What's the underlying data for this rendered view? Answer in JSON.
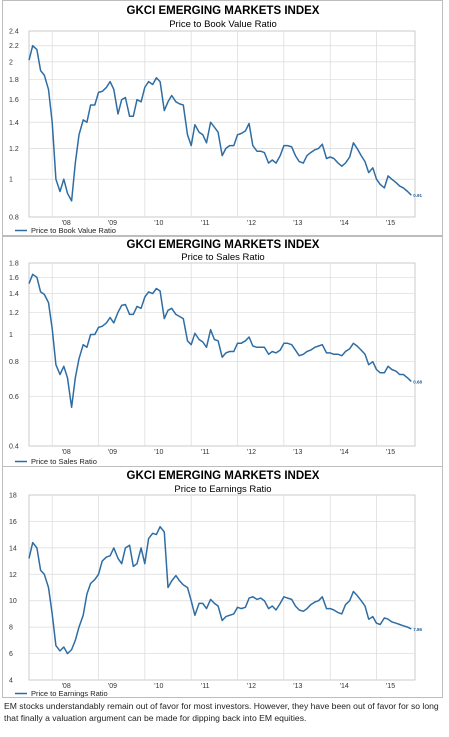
{
  "caption": "EM stocks understandably remain out of favor for most investors. However, they have been out of favor for so long that finally a valuation argument can be made for dipping back into EM equities.",
  "colors": {
    "line": "#2e6da4",
    "grid": "#d9d9d9",
    "border": "#bdbdbd"
  },
  "chart_data": [
    {
      "type": "line",
      "title": "GKCI EMERGING MARKETS INDEX",
      "subtitle": "Price to Book Value Ratio",
      "legend": "Price to Book Value Ratio",
      "legend_position": "bottom-left",
      "y_scale": "log",
      "ylim": [
        0.8,
        2.4
      ],
      "y_ticks": [
        0.8,
        1,
        1.2,
        1.4,
        1.6,
        1.8,
        2,
        2.2,
        2.4
      ],
      "y_tick_labels": [
        "0.8",
        "1",
        "1.2",
        "1.4",
        "1.6",
        "1.8",
        "2",
        "2.2",
        "2.4"
      ],
      "xlim": [
        2007.5,
        2015.83
      ],
      "x_ticks": [
        2008,
        2009,
        2010,
        2011,
        2012,
        2013,
        2014,
        2015
      ],
      "x_tick_labels": [
        "'08",
        "'09",
        "'10",
        "'11",
        "'12",
        "'13",
        "'14",
        "'15"
      ],
      "grid": true,
      "end_label": "0.91",
      "series": [
        {
          "x": [
            2007.5,
            2007.58,
            2007.67,
            2007.75,
            2007.83,
            2007.92,
            2008.0,
            2008.08,
            2008.17,
            2008.25,
            2008.33,
            2008.42,
            2008.5,
            2008.58,
            2008.67,
            2008.75,
            2008.83,
            2008.92,
            2009.0,
            2009.08,
            2009.17,
            2009.25,
            2009.33,
            2009.42,
            2009.5,
            2009.58,
            2009.67,
            2009.75,
            2009.83,
            2009.92,
            2010.0,
            2010.08,
            2010.17,
            2010.25,
            2010.33,
            2010.42,
            2010.5,
            2010.58,
            2010.67,
            2010.75,
            2010.83,
            2010.92,
            2011.0,
            2011.08,
            2011.17,
            2011.25,
            2011.33,
            2011.42,
            2011.5,
            2011.58,
            2011.67,
            2011.75,
            2011.83,
            2011.92,
            2012.0,
            2012.08,
            2012.17,
            2012.25,
            2012.33,
            2012.42,
            2012.5,
            2012.58,
            2012.67,
            2012.75,
            2012.83,
            2012.92,
            2013.0,
            2013.08,
            2013.17,
            2013.25,
            2013.33,
            2013.42,
            2013.5,
            2013.58,
            2013.67,
            2013.75,
            2013.83,
            2013.92,
            2014.0,
            2014.08,
            2014.17,
            2014.25,
            2014.33,
            2014.42,
            2014.5,
            2014.58,
            2014.67,
            2014.75,
            2014.83,
            2014.92,
            2015.0,
            2015.08,
            2015.17,
            2015.25,
            2015.33,
            2015.42,
            2015.5,
            2015.58,
            2015.67,
            2015.75
          ],
          "values": [
            2.02,
            2.2,
            2.15,
            1.9,
            1.85,
            1.7,
            1.4,
            1.0,
            0.93,
            1.0,
            0.92,
            0.88,
            1.1,
            1.3,
            1.42,
            1.4,
            1.55,
            1.55,
            1.67,
            1.68,
            1.72,
            1.78,
            1.7,
            1.47,
            1.6,
            1.62,
            1.45,
            1.45,
            1.6,
            1.58,
            1.72,
            1.78,
            1.75,
            1.82,
            1.78,
            1.5,
            1.58,
            1.64,
            1.58,
            1.56,
            1.55,
            1.3,
            1.22,
            1.38,
            1.32,
            1.3,
            1.24,
            1.4,
            1.36,
            1.32,
            1.15,
            1.2,
            1.22,
            1.22,
            1.3,
            1.31,
            1.33,
            1.39,
            1.22,
            1.18,
            1.18,
            1.17,
            1.1,
            1.12,
            1.1,
            1.15,
            1.22,
            1.22,
            1.21,
            1.15,
            1.11,
            1.1,
            1.15,
            1.17,
            1.19,
            1.2,
            1.23,
            1.13,
            1.14,
            1.13,
            1.1,
            1.08,
            1.1,
            1.14,
            1.24,
            1.2,
            1.15,
            1.11,
            1.04,
            1.07,
            1.0,
            0.97,
            0.95,
            1.02,
            1.0,
            0.98,
            0.96,
            0.95,
            0.93,
            0.91
          ]
        }
      ]
    },
    {
      "type": "line",
      "title": "GKCI EMERGING MARKETS INDEX",
      "subtitle": "Price to Sales Ratio",
      "legend": "Price to Sales Ratio",
      "legend_position": "bottom-left",
      "y_scale": "log",
      "ylim": [
        0.4,
        1.8
      ],
      "y_ticks": [
        0.4,
        0.6,
        0.8,
        1,
        1.2,
        1.4,
        1.6,
        1.8
      ],
      "y_tick_labels": [
        "0.4",
        "0.6",
        "0.8",
        "1",
        "1.2",
        "1.4",
        "1.6",
        "1.8"
      ],
      "xlim": [
        2007.5,
        2015.83
      ],
      "x_ticks": [
        2008,
        2009,
        2010,
        2011,
        2012,
        2013,
        2014,
        2015
      ],
      "x_tick_labels": [
        "'08",
        "'09",
        "'10",
        "'11",
        "'12",
        "'13",
        "'14",
        "'15"
      ],
      "grid": true,
      "end_label": "0.68",
      "series": [
        {
          "x": [
            2007.5,
            2007.58,
            2007.67,
            2007.75,
            2007.83,
            2007.92,
            2008.0,
            2008.08,
            2008.17,
            2008.25,
            2008.33,
            2008.42,
            2008.5,
            2008.58,
            2008.67,
            2008.75,
            2008.83,
            2008.92,
            2009.0,
            2009.08,
            2009.17,
            2009.25,
            2009.33,
            2009.42,
            2009.5,
            2009.58,
            2009.67,
            2009.75,
            2009.83,
            2009.92,
            2010.0,
            2010.08,
            2010.17,
            2010.25,
            2010.33,
            2010.42,
            2010.5,
            2010.58,
            2010.67,
            2010.75,
            2010.83,
            2010.92,
            2011.0,
            2011.08,
            2011.17,
            2011.25,
            2011.33,
            2011.42,
            2011.5,
            2011.58,
            2011.67,
            2011.75,
            2011.83,
            2011.92,
            2012.0,
            2012.08,
            2012.17,
            2012.25,
            2012.33,
            2012.42,
            2012.5,
            2012.58,
            2012.67,
            2012.75,
            2012.83,
            2012.92,
            2013.0,
            2013.08,
            2013.17,
            2013.25,
            2013.33,
            2013.42,
            2013.5,
            2013.58,
            2013.67,
            2013.75,
            2013.83,
            2013.92,
            2014.0,
            2014.08,
            2014.17,
            2014.25,
            2014.33,
            2014.42,
            2014.5,
            2014.58,
            2014.67,
            2014.75,
            2014.83,
            2014.92,
            2015.0,
            2015.08,
            2015.17,
            2015.25,
            2015.33,
            2015.42,
            2015.5,
            2015.58,
            2015.67,
            2015.75
          ],
          "values": [
            1.52,
            1.64,
            1.6,
            1.42,
            1.39,
            1.3,
            1.05,
            0.78,
            0.72,
            0.77,
            0.7,
            0.55,
            0.7,
            0.82,
            0.92,
            0.9,
            1.0,
            1.0,
            1.06,
            1.07,
            1.1,
            1.15,
            1.1,
            1.2,
            1.27,
            1.28,
            1.18,
            1.18,
            1.26,
            1.24,
            1.36,
            1.42,
            1.4,
            1.46,
            1.43,
            1.14,
            1.22,
            1.24,
            1.18,
            1.16,
            1.14,
            0.95,
            0.92,
            1.01,
            0.96,
            0.94,
            0.9,
            1.04,
            0.96,
            0.95,
            0.83,
            0.86,
            0.87,
            0.87,
            0.93,
            0.93,
            0.95,
            0.98,
            0.91,
            0.9,
            0.9,
            0.9,
            0.85,
            0.87,
            0.86,
            0.88,
            0.93,
            0.93,
            0.92,
            0.88,
            0.84,
            0.85,
            0.87,
            0.88,
            0.9,
            0.91,
            0.92,
            0.86,
            0.86,
            0.85,
            0.85,
            0.84,
            0.87,
            0.89,
            0.93,
            0.91,
            0.88,
            0.85,
            0.78,
            0.8,
            0.75,
            0.73,
            0.73,
            0.77,
            0.75,
            0.74,
            0.72,
            0.72,
            0.7,
            0.68
          ]
        }
      ]
    },
    {
      "type": "line",
      "title": "GKCI EMERGING MARKETS INDEX",
      "subtitle": "Price to Earnings Ratio",
      "legend": "Price to Earnings Ratio",
      "legend_position": "bottom-left",
      "y_scale": "linear",
      "ylim": [
        4,
        18
      ],
      "y_ticks": [
        4,
        6,
        8,
        10,
        12,
        14,
        16,
        18
      ],
      "y_tick_labels": [
        "4",
        "6",
        "8",
        "10",
        "12",
        "14",
        "16",
        "18"
      ],
      "xlim": [
        2007.5,
        2015.83
      ],
      "x_ticks": [
        2008,
        2009,
        2010,
        2011,
        2012,
        2013,
        2014,
        2015
      ],
      "x_tick_labels": [
        "'08",
        "'09",
        "'10",
        "'11",
        "'12",
        "'13",
        "'14",
        "'15"
      ],
      "grid": true,
      "end_label": "7.86",
      "series": [
        {
          "x": [
            2007.5,
            2007.58,
            2007.67,
            2007.75,
            2007.83,
            2007.92,
            2008.0,
            2008.08,
            2008.17,
            2008.25,
            2008.33,
            2008.42,
            2008.5,
            2008.58,
            2008.67,
            2008.75,
            2008.83,
            2008.92,
            2009.0,
            2009.08,
            2009.17,
            2009.25,
            2009.33,
            2009.42,
            2009.5,
            2009.58,
            2009.67,
            2009.75,
            2009.83,
            2009.92,
            2010.0,
            2010.08,
            2010.17,
            2010.25,
            2010.33,
            2010.42,
            2010.5,
            2010.58,
            2010.67,
            2010.75,
            2010.83,
            2010.92,
            2011.0,
            2011.08,
            2011.17,
            2011.25,
            2011.33,
            2011.42,
            2011.5,
            2011.58,
            2011.67,
            2011.75,
            2011.83,
            2011.92,
            2012.0,
            2012.08,
            2012.17,
            2012.25,
            2012.33,
            2012.42,
            2012.5,
            2012.58,
            2012.67,
            2012.75,
            2012.83,
            2012.92,
            2013.0,
            2013.08,
            2013.17,
            2013.25,
            2013.33,
            2013.42,
            2013.5,
            2013.58,
            2013.67,
            2013.75,
            2013.83,
            2013.92,
            2014.0,
            2014.08,
            2014.17,
            2014.25,
            2014.33,
            2014.42,
            2014.5,
            2014.58,
            2014.67,
            2014.75,
            2014.83,
            2014.92,
            2015.0,
            2015.08,
            2015.17,
            2015.25,
            2015.33,
            2015.42,
            2015.5,
            2015.58,
            2015.67,
            2015.75
          ],
          "values": [
            13.2,
            14.4,
            14.0,
            12.3,
            12.0,
            11.0,
            9.0,
            6.6,
            6.2,
            6.5,
            6.0,
            6.3,
            7.0,
            8.0,
            8.9,
            10.5,
            11.3,
            11.6,
            12.0,
            13.0,
            13.3,
            13.4,
            14.0,
            13.2,
            12.8,
            14.0,
            14.2,
            12.6,
            12.8,
            14.0,
            12.8,
            14.7,
            15.1,
            15.0,
            15.6,
            15.2,
            11.0,
            11.5,
            11.9,
            11.5,
            11.2,
            11.0,
            10.0,
            8.9,
            9.8,
            9.8,
            9.4,
            10.1,
            9.8,
            9.6,
            8.5,
            8.8,
            8.9,
            9.0,
            9.5,
            9.4,
            9.5,
            10.2,
            10.3,
            10.1,
            10.2,
            10.0,
            9.4,
            9.6,
            9.3,
            9.8,
            10.3,
            10.2,
            10.1,
            9.6,
            9.3,
            9.2,
            9.4,
            9.7,
            9.9,
            10.0,
            10.3,
            9.4,
            9.4,
            9.3,
            9.1,
            9.0,
            9.7,
            10.0,
            10.7,
            10.4,
            10.0,
            9.6,
            8.6,
            8.8,
            8.3,
            8.2,
            8.7,
            8.6,
            8.4,
            8.3,
            8.2,
            8.1,
            8.0,
            7.86
          ]
        }
      ]
    }
  ]
}
